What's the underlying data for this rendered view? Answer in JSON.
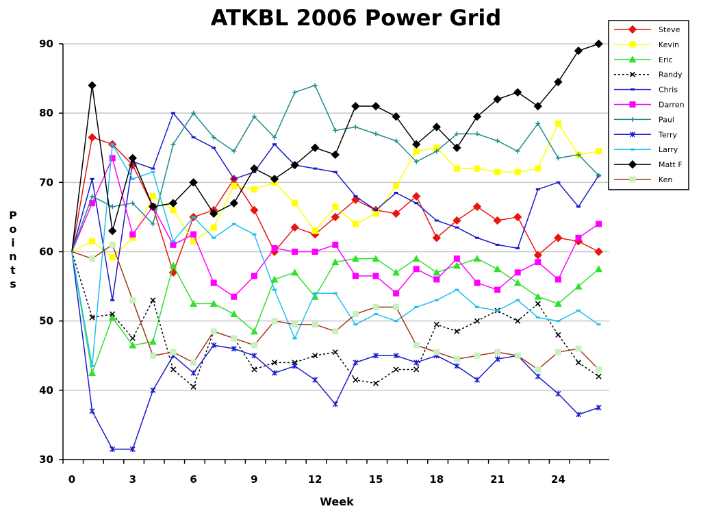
{
  "chart_data": {
    "type": "line",
    "title": "ATKBL 2006 Power Grid",
    "xlabel": "Week",
    "ylabel": "Points",
    "xlim": [
      0,
      26
    ],
    "ylim": [
      30,
      90
    ],
    "x_ticks": [
      0,
      3,
      6,
      9,
      12,
      15,
      18,
      21,
      24
    ],
    "y_ticks": [
      30,
      40,
      50,
      60,
      70,
      80,
      90
    ],
    "grid": "horizontal",
    "legend_position": "top-right",
    "x": [
      0,
      1,
      2,
      3,
      4,
      5,
      6,
      7,
      8,
      9,
      10,
      11,
      12,
      13,
      14,
      15,
      16,
      17,
      18,
      19,
      20,
      21,
      22,
      23,
      24,
      25,
      26
    ],
    "series": [
      {
        "name": "Steve",
        "color": "#e8150f",
        "marker": "diamond",
        "dash": "",
        "values": [
          60,
          76.5,
          75.5,
          72.5,
          66.5,
          57,
          65,
          66,
          70.5,
          66,
          60,
          63.5,
          62.5,
          65,
          67.5,
          66,
          65.5,
          68,
          62,
          64.5,
          66.5,
          64.5,
          65,
          59.5,
          62,
          61.5,
          60
        ]
      },
      {
        "name": "Kevin",
        "color": "#ffff00",
        "marker": "square",
        "dash": "",
        "values": [
          60,
          61.5,
          59.2,
          62,
          68,
          66,
          61.5,
          63.5,
          69.5,
          69,
          70,
          67,
          63,
          66.5,
          64,
          65.5,
          69.5,
          74.5,
          75,
          72,
          72,
          71.5,
          71.5,
          72,
          78.5,
          74,
          74.5
        ]
      },
      {
        "name": "Eric",
        "color": "#2fe02f",
        "marker": "triangle",
        "dash": "",
        "values": [
          60,
          42.5,
          50.5,
          46.5,
          47,
          58,
          52.5,
          52.5,
          51,
          48.5,
          56,
          57,
          53.5,
          58.5,
          59,
          59,
          57,
          59,
          57,
          58,
          59,
          57.5,
          55.5,
          53.5,
          52.5,
          55,
          57.5
        ]
      },
      {
        "name": "Randy",
        "color": "#000000",
        "marker": "x",
        "dash": "3,3",
        "values": [
          60,
          50.5,
          51,
          47.5,
          53,
          43,
          40.5,
          48.5,
          47.5,
          43,
          44,
          44,
          45,
          45.5,
          41.5,
          41,
          43,
          43,
          49.5,
          48.5,
          50,
          51.5,
          50,
          52.5,
          48,
          44,
          42
        ]
      },
      {
        "name": "Chris",
        "color": "#1a1acc",
        "marker": "dash",
        "dash": "",
        "values": [
          60,
          70.5,
          53,
          73,
          72,
          80,
          76.5,
          75,
          70.5,
          71.5,
          75.5,
          72.5,
          72,
          71.5,
          68,
          66,
          68.5,
          67,
          64.5,
          63.5,
          62,
          61,
          60.5,
          69,
          70,
          66.5,
          71
        ]
      },
      {
        "name": "Darren",
        "color": "#ff00ff",
        "marker": "square",
        "dash": "",
        "values": [
          60,
          67,
          73.5,
          62.5,
          66.5,
          61,
          62.5,
          55.5,
          53.5,
          56.5,
          60.5,
          60,
          60,
          61,
          56.5,
          56.5,
          54,
          57.5,
          56,
          59,
          55.5,
          54.5,
          57,
          58.5,
          56,
          62,
          64
        ]
      },
      {
        "name": "Paul",
        "color": "#1f8a8a",
        "marker": "plus",
        "dash": "",
        "values": [
          60,
          68,
          66.5,
          67,
          64,
          75.5,
          80,
          76.5,
          74.5,
          79.5,
          76.5,
          83,
          84,
          77.5,
          78,
          77,
          76,
          73,
          74.5,
          77,
          77,
          76,
          74.5,
          78.5,
          73.5,
          74,
          71
        ]
      },
      {
        "name": "Terry",
        "color": "#1a1acc",
        "marker": "asterisk",
        "dash": "",
        "values": [
          60,
          37,
          31.5,
          31.5,
          40,
          45,
          42.5,
          46.5,
          46,
          45,
          42.5,
          43.5,
          41.5,
          38,
          44,
          45,
          45,
          44,
          45,
          43.5,
          41.5,
          44.5,
          45,
          42,
          39.5,
          36.5,
          37.5
        ]
      },
      {
        "name": "Larry",
        "color": "#1ec0f0",
        "marker": "dash",
        "dash": "",
        "values": [
          60,
          43.5,
          75.5,
          70.5,
          71.5,
          61.5,
          65,
          62,
          64,
          62.5,
          54.5,
          47.5,
          54,
          54,
          49.5,
          51,
          50,
          52,
          53,
          54.5,
          52,
          51.5,
          53,
          50.5,
          50,
          51.5,
          49.5
        ]
      },
      {
        "name": "Matt F",
        "color": "#000000",
        "marker": "diamond",
        "dash": "",
        "values": [
          60,
          84,
          63,
          73.5,
          66.5,
          67,
          70,
          65.5,
          67,
          72,
          70.5,
          72.5,
          75,
          74,
          81,
          81,
          79.5,
          75.5,
          78,
          75,
          79.5,
          82,
          83,
          81,
          84.5,
          89,
          90
        ]
      },
      {
        "name": "Ken",
        "color": "#a0391a",
        "marker": "square-light",
        "marker_color": "#c8f0c0",
        "dash": "",
        "values": [
          60,
          59,
          61,
          53,
          45,
          45.5,
          44,
          48.5,
          47.5,
          46.5,
          50,
          49.5,
          49.5,
          48.5,
          51,
          52,
          52,
          46.5,
          45.5,
          44.5,
          45,
          45.5,
          45,
          43,
          45.5,
          46,
          43
        ]
      }
    ]
  }
}
